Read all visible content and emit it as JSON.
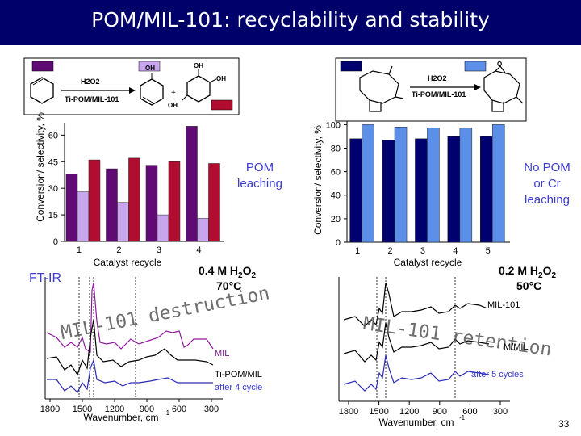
{
  "slide": {
    "title": "POM/MIL-101: recyclability and stability",
    "page_number": "33",
    "colors": {
      "title_bg": "#00006a",
      "dark_purple": "#600a74",
      "light_purple": "#c8a6ee",
      "crimson": "#b00d30",
      "dark_navy": "#00006e",
      "light_blue": "#5b8fe8"
    }
  },
  "left": {
    "scheme": {
      "reagent": "H2O2",
      "catalyst": "Ti-POM/MIL-101",
      "plus": "+",
      "oh": "OH"
    },
    "note": "POM\nleaching",
    "condition_conc": "0.4 M H",
    "condition_o2": "O",
    "condition_temp": "70°C",
    "ftir_label": "FT-IR",
    "stamp": "MIL-101 destruction",
    "ftir_legend": [
      "MIL",
      "Ti-POM/MIL",
      "after 4 cycle"
    ]
  },
  "right": {
    "scheme": {
      "reagent": "H2O2",
      "catalyst": "Ti-POM/MIL-101",
      "o": "O"
    },
    "note": "No POM\nor Cr\nleaching",
    "condition_conc": "0.2 M H",
    "condition_o2": "O",
    "condition_temp": "50°C",
    "stamp": "MIL-101 retention",
    "ftir_legend": [
      "MIL-101",
      "M/MIL",
      "after 5 cycles"
    ]
  },
  "chart_data": [
    {
      "type": "bar",
      "categories": [
        "1",
        "2",
        "3",
        "4"
      ],
      "series": [
        {
          "color": "#600a74",
          "values": [
            38,
            41,
            43,
            65
          ]
        },
        {
          "color": "#c8a6ee",
          "values": [
            28,
            22,
            15,
            13
          ]
        },
        {
          "color": "#b00d30",
          "values": [
            46,
            47,
            45,
            44
          ]
        }
      ],
      "xlabel": "Catalyst recycle",
      "ylabel": "Conversion/ selectivity, %",
      "ylim": [
        0,
        67
      ],
      "yticks": [
        0,
        15,
        30,
        45,
        60
      ]
    },
    {
      "type": "bar",
      "categories": [
        "1",
        "2",
        "3",
        "4",
        "5"
      ],
      "series": [
        {
          "color": "#00006e",
          "values": [
            88,
            87,
            88,
            90,
            90
          ]
        },
        {
          "color": "#5b8fe8",
          "values": [
            100,
            98,
            97,
            97,
            100
          ]
        }
      ],
      "xlabel": "Catalyst recycle",
      "ylabel": "Conversion/ selectivity, %",
      "ylim": [
        0,
        103
      ],
      "yticks": [
        0,
        20,
        40,
        60,
        80,
        100
      ]
    },
    {
      "type": "line",
      "xlabel": "Wavenumber, cm",
      "xticks": [
        1800,
        1500,
        1200,
        900,
        600,
        300
      ],
      "xlim": [
        1800,
        300
      ],
      "series": [
        {
          "name": "MIL",
          "color": "#000000"
        },
        {
          "name": "Ti-POM/MIL",
          "color": "#000000"
        },
        {
          "name": "after 4 cycle",
          "color": "#2a2ab8"
        }
      ]
    },
    {
      "type": "line",
      "xlabel": "Wavenumber, cm",
      "xticks": [
        1800,
        1500,
        1200,
        900,
        600,
        300
      ],
      "xlim": [
        1800,
        300
      ],
      "series": [
        {
          "name": "MIL-101",
          "color": "#000000"
        },
        {
          "name": "M/MIL",
          "color": "#000000"
        },
        {
          "name": "after 5 cycles",
          "color": "#2a2ab8"
        }
      ]
    }
  ]
}
